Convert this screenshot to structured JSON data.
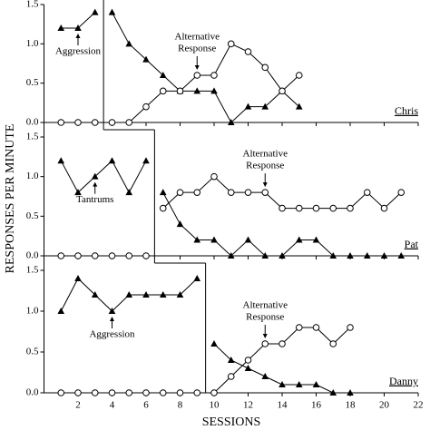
{
  "ylabel": "RESPONSES PER MINUTE",
  "xlabel": "SESSIONS",
  "chart_data": [
    {
      "type": "line",
      "label": "Chris",
      "xlim": [
        0,
        22
      ],
      "xticks": [
        2,
        4,
        6,
        8,
        10,
        12,
        14,
        16,
        18,
        20,
        22
      ],
      "ylim": [
        0,
        1.5
      ],
      "yticks": [
        {
          "value": 0,
          "label": "0.0"
        },
        {
          "value": 0.5,
          "label": "0.5"
        },
        {
          "value": 1,
          "label": "1.0"
        },
        {
          "value": 1.5,
          "label": "1.5"
        }
      ],
      "phase_change": 3.5,
      "series": [
        {
          "marker": "triangle",
          "color": "#000000",
          "x": [
            1,
            2,
            3
          ],
          "values": [
            1.2,
            1.2,
            1.4
          ]
        },
        {
          "marker": "circle",
          "color": "#000000",
          "x": [
            1,
            2,
            3
          ],
          "values": [
            0,
            0,
            0
          ]
        },
        {
          "marker": "triangle",
          "color": "#000000",
          "x": [
            4,
            5,
            6,
            7,
            8,
            9,
            10,
            11,
            12,
            13,
            14,
            15
          ],
          "values": [
            1.4,
            1.0,
            0.8,
            0.6,
            0.4,
            0.4,
            0.4,
            0,
            0.2,
            0.2,
            0.4,
            0.2
          ]
        },
        {
          "marker": "circle",
          "color": "#000000",
          "x": [
            4,
            5,
            6,
            7,
            8,
            9,
            10,
            11,
            12,
            13,
            14,
            15
          ],
          "values": [
            0,
            0,
            0.2,
            0.4,
            0.4,
            0.6,
            0.6,
            1.0,
            0.9,
            0.7,
            0.4,
            0.6
          ]
        }
      ],
      "annotations": [
        {
          "text": [
            "Aggression"
          ],
          "x": 2,
          "y": 1.2
        },
        {
          "text": [
            "Alternative",
            "Response"
          ],
          "x": 9,
          "y": 0.6
        }
      ]
    },
    {
      "type": "line",
      "label": "Pat",
      "xlim": [
        0,
        22
      ],
      "xticks": [
        2,
        4,
        6,
        8,
        10,
        12,
        14,
        16,
        18,
        20,
        22
      ],
      "ylim": [
        0,
        1.5
      ],
      "yticks": [
        {
          "value": 0,
          "label": "0.0"
        },
        {
          "value": 0.5,
          "label": "0.5"
        },
        {
          "value": 1,
          "label": "1.0"
        },
        {
          "value": 1.5,
          "label": "1.5"
        }
      ],
      "phase_change": 6.5,
      "series": [
        {
          "marker": "triangle",
          "color": "#000000",
          "x": [
            1,
            2,
            3,
            4,
            5,
            6
          ],
          "values": [
            1.2,
            0.8,
            1.0,
            1.2,
            0.8,
            1.2
          ]
        },
        {
          "marker": "circle",
          "color": "#000000",
          "x": [
            1,
            2,
            3,
            4,
            5,
            6
          ],
          "values": [
            0,
            0,
            0,
            0,
            0,
            0
          ]
        },
        {
          "marker": "triangle",
          "color": "#000000",
          "x": [
            7,
            8,
            9,
            10,
            11,
            12,
            13,
            14,
            15,
            16,
            17,
            18,
            19,
            20,
            21
          ],
          "values": [
            0.8,
            0.4,
            0.2,
            0.2,
            0,
            0.2,
            0,
            0,
            0.2,
            0.2,
            0,
            0,
            0,
            0,
            0
          ]
        },
        {
          "marker": "circle",
          "color": "#000000",
          "x": [
            7,
            8,
            9,
            10,
            11,
            12,
            13,
            14,
            15,
            16,
            17,
            18,
            19,
            20,
            21
          ],
          "values": [
            0.6,
            0.8,
            0.8,
            1.0,
            0.8,
            0.8,
            0.8,
            0.6,
            0.6,
            0.6,
            0.6,
            0.6,
            0.8,
            0.6,
            0.8
          ]
        }
      ],
      "annotations": [
        {
          "text": [
            "Tantrums"
          ],
          "x": 3,
          "y": 1.0
        },
        {
          "text": [
            "Alternative",
            "Response"
          ],
          "x": 13,
          "y": 0.8
        }
      ]
    },
    {
      "type": "line",
      "label": "Danny",
      "xlim": [
        0,
        22
      ],
      "xticks": [
        2,
        4,
        6,
        8,
        10,
        12,
        14,
        16,
        18,
        20,
        22
      ],
      "ylim": [
        0,
        1.5
      ],
      "yticks": [
        {
          "value": 0,
          "label": "0.0"
        },
        {
          "value": 0.5,
          "label": "0.5"
        },
        {
          "value": 1,
          "label": "1.0"
        },
        {
          "value": 1.5,
          "label": "1.5"
        }
      ],
      "phase_change": 9.5,
      "series": [
        {
          "marker": "triangle",
          "color": "#000000",
          "x": [
            1,
            2,
            3,
            4,
            5,
            6,
            7,
            8,
            9
          ],
          "values": [
            1.0,
            1.4,
            1.2,
            1.0,
            1.2,
            1.2,
            1.2,
            1.2,
            1.4
          ]
        },
        {
          "marker": "circle",
          "color": "#000000",
          "x": [
            1,
            2,
            3,
            4,
            5,
            6,
            7,
            8,
            9
          ],
          "values": [
            0,
            0,
            0,
            0,
            0,
            0,
            0,
            0,
            0
          ]
        },
        {
          "marker": "triangle",
          "color": "#000000",
          "x": [
            10,
            11,
            12,
            13,
            14,
            15,
            16,
            17,
            18
          ],
          "values": [
            0.6,
            0.4,
            0.3,
            0.2,
            0.1,
            0.1,
            0.1,
            0,
            0
          ]
        },
        {
          "marker": "circle",
          "color": "#000000",
          "x": [
            10,
            11,
            12,
            13,
            14,
            15,
            16,
            17,
            18
          ],
          "values": [
            0,
            0.2,
            0.4,
            0.6,
            0.6,
            0.8,
            0.8,
            0.6,
            0.8
          ]
        }
      ],
      "annotations": [
        {
          "text": [
            "Aggression"
          ],
          "x": 4,
          "y": 1.0
        },
        {
          "text": [
            "Alternative",
            "Response"
          ],
          "x": 13,
          "y": 0.6
        }
      ]
    }
  ]
}
